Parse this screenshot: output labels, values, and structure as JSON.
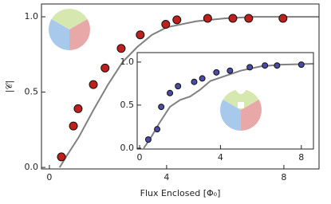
{
  "chart_data": [
    {
      "type": "scatter",
      "xlabel": "Flux Enclosed [Φ₀]",
      "ylabel": "|𝒞|",
      "xlim": [
        -0.27,
        9.2
      ],
      "ylim": [
        -0.01,
        1.085
      ],
      "xticks": [
        0,
        4,
        8
      ],
      "yticks": [
        {
          "value": 0,
          "label": "0.0"
        },
        {
          "value": 0.5,
          "label": "0.5"
        },
        {
          "value": 1,
          "label": "1.0"
        }
      ],
      "series": [
        {
          "type": "line",
          "color": "#808080",
          "x": [
            0.35,
            0.6,
            1.0,
            1.5,
            2.0,
            2.5,
            3.0,
            3.5,
            4.0,
            5.0,
            6.0,
            7.0,
            9.2
          ],
          "values": [
            0.0,
            0.08,
            0.2,
            0.38,
            0.55,
            0.7,
            0.8,
            0.88,
            0.93,
            0.97,
            0.99,
            1.0,
            1.0
          ]
        },
        {
          "type": "scatter",
          "color": "#c0201c",
          "x": [
            0.41,
            0.82,
            0.98,
            1.5,
            1.9,
            2.45,
            3.1,
            3.97,
            4.35,
            5.4,
            6.26,
            6.8,
            7.97
          ],
          "values": [
            0.07,
            0.275,
            0.39,
            0.55,
            0.66,
            0.79,
            0.88,
            0.95,
            0.98,
            0.99,
            0.99,
            0.99,
            0.99
          ]
        }
      ]
    },
    {
      "type": "scatter",
      "xlim": [
        -0.12,
        8.6
      ],
      "ylim": [
        -0.01,
        1.11
      ],
      "xticks": [
        0,
        4,
        8
      ],
      "yticks": [
        {
          "value": 0,
          "label": "0.0"
        },
        {
          "value": 0.5,
          "label": "0.5"
        },
        {
          "value": 1,
          "label": "1.0"
        }
      ],
      "series": [
        {
          "type": "line",
          "color": "#808080",
          "x": [
            0.2,
            0.5,
            1.0,
            1.5,
            2.0,
            2.5,
            3.0,
            3.5,
            4.0,
            5.0,
            6.0,
            7.0,
            8.6
          ],
          "values": [
            0.0,
            0.1,
            0.3,
            0.48,
            0.56,
            0.6,
            0.68,
            0.78,
            0.82,
            0.9,
            0.95,
            0.97,
            0.98
          ]
        },
        {
          "type": "scatter",
          "color": "#4a4aa8",
          "x": [
            0.43,
            0.87,
            1.07,
            1.5,
            1.9,
            2.7,
            3.1,
            3.8,
            4.47,
            5.45,
            6.2,
            6.8,
            8.0
          ],
          "values": [
            0.1,
            0.22,
            0.48,
            0.64,
            0.72,
            0.77,
            0.81,
            0.88,
            0.9,
            0.94,
            0.96,
            0.96,
            0.97
          ]
        }
      ]
    }
  ]
}
